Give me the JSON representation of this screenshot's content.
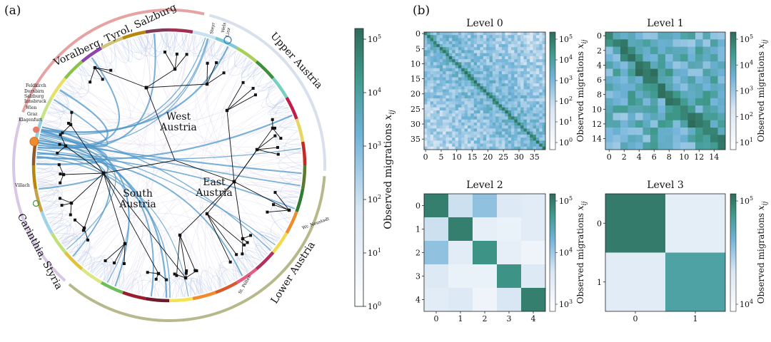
{
  "panel_a": {
    "label": "(a)",
    "regions": [
      {
        "name": "Voralberg, Tyrol, Salzburg",
        "color": "#e7a2a2"
      },
      {
        "name": "Upper Austria",
        "color": "#d7e0ec"
      },
      {
        "name": "Lower Austria",
        "color": "#b7b98c"
      },
      {
        "name": "Carinthia, Styria",
        "color": "#d9c7e6"
      }
    ],
    "cluster_labels": [
      {
        "text": "West"
      },
      {
        "text": "Austria"
      },
      {
        "text": "East"
      },
      {
        "text": "Austria"
      },
      {
        "text": "South"
      },
      {
        "text": "Austria"
      }
    ],
    "city_labels": [
      "Steyr",
      "Wels",
      "Linz",
      "Feldkirch",
      "Dornbirn",
      "Salzburg",
      "Innsbruck",
      "Wien",
      "Graz",
      "Klagenfurt",
      "Villach",
      "Wr. Neustadt",
      "St. Pölten"
    ],
    "colorbar": {
      "label": "Observed migrations x_ij",
      "label_main": "Observed migrations ",
      "label_var": "x",
      "label_sub": "ij",
      "ticks": [
        "10^0",
        "10^1",
        "10^2",
        "10^3",
        "10^4",
        "10^5"
      ],
      "tick_bases": [
        "10",
        "10",
        "10",
        "10",
        "10",
        "10"
      ],
      "tick_exps": [
        "0",
        "1",
        "2",
        "3",
        "4",
        "5"
      ],
      "color_low": "#ffffff",
      "color_mid": "#6fb2d8",
      "color_high": "#2e6b5a"
    }
  },
  "panel_b": {
    "label": "(b)",
    "colorbar_label_main": "Observed migrations ",
    "colorbar_label_var": "x",
    "colorbar_label_sub": "ij",
    "levels": [
      {
        "title": "Level 0",
        "n": 39,
        "xticks": [
          "0",
          "5",
          "10",
          "15",
          "20",
          "25",
          "30",
          "35"
        ],
        "yticks": [
          "0",
          "5",
          "10",
          "15",
          "20",
          "25",
          "30",
          "35"
        ],
        "cb_bases": [
          "10",
          "10",
          "10",
          "10",
          "10",
          "10"
        ],
        "cb_exps": [
          "5",
          "4",
          "3",
          "2",
          "1",
          "0"
        ]
      },
      {
        "title": "Level 1",
        "n": 16,
        "xticks": [
          "0",
          "2",
          "4",
          "6",
          "8",
          "10",
          "12",
          "14"
        ],
        "yticks": [
          "0",
          "2",
          "4",
          "6",
          "8",
          "10",
          "12",
          "14"
        ],
        "cb_bases": [
          "10",
          "10",
          "10",
          "10",
          "10"
        ],
        "cb_exps": [
          "5",
          "4",
          "3",
          "2",
          "1"
        ]
      },
      {
        "title": "Level 2",
        "n": 5,
        "xticks": [
          "0",
          "1",
          "2",
          "3",
          "4"
        ],
        "yticks": [
          "0",
          "1",
          "2",
          "3",
          "4"
        ],
        "cb_bases": [
          "10",
          "10",
          "10"
        ],
        "cb_exps": [
          "5",
          "4",
          "3"
        ]
      },
      {
        "title": "Level 3",
        "n": 2,
        "xticks": [
          "0",
          "1"
        ],
        "yticks": [
          "0",
          "1"
        ],
        "cb_bases": [
          "10",
          "10"
        ],
        "cb_exps": [
          "5",
          "4"
        ]
      }
    ],
    "level2_matrix": [
      [
        5.0,
        3.6,
        4.0,
        3.4,
        3.3
      ],
      [
        3.6,
        5.0,
        3.2,
        3.1,
        3.3
      ],
      [
        4.0,
        3.3,
        4.8,
        3.2,
        3.0
      ],
      [
        3.4,
        3.1,
        3.1,
        4.8,
        3.4
      ],
      [
        3.3,
        3.4,
        3.0,
        3.5,
        5.0
      ]
    ],
    "level3_matrix": [
      [
        5.3,
        4.15
      ],
      [
        4.2,
        5.0
      ]
    ]
  }
}
